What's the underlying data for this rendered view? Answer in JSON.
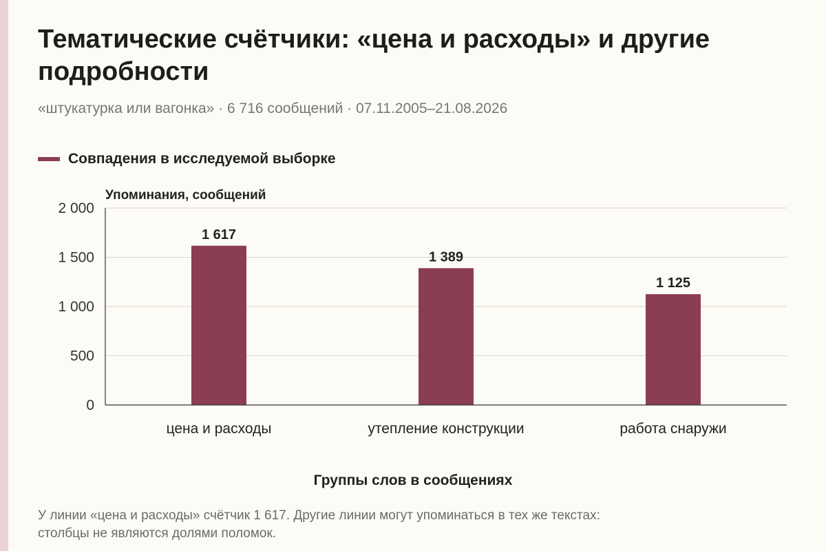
{
  "header": {
    "title": "Тематические счётчики: «цена и расходы» и другие подробности",
    "subtitle": "«штукатурка или вагонка» · 6 716 сообщений · 07.11.2005–21.08.2026"
  },
  "legend": {
    "label": "Совпадения в исследуемой выборке",
    "color": "#8b3d52"
  },
  "chart_data": {
    "type": "bar",
    "categories": [
      "цена и расходы",
      "утепление конструкции",
      "работа снаружи"
    ],
    "series": [
      {
        "name": "Совпадения в исследуемой выборке",
        "values": [
          1617,
          1389,
          1125
        ],
        "data_labels": [
          "1 617",
          "1 389",
          "1 125"
        ],
        "color": "#8b3d52"
      }
    ],
    "ylabel": "Упоминания, сообщений",
    "xlabel": "Группы слов в сообщениях",
    "ylim": [
      0,
      2000
    ],
    "yticks": [
      0,
      500,
      1000,
      1500,
      2000
    ],
    "ytick_labels": [
      "0",
      "500",
      "1 000",
      "1 500",
      "2 000"
    ],
    "grid": true,
    "legend_position": "top-left"
  },
  "footnote": "У линии «цена и расходы» счётчик 1 617. Другие линии могут упоминаться в тех же текстах:\nстолбцы не являются долями поломок."
}
